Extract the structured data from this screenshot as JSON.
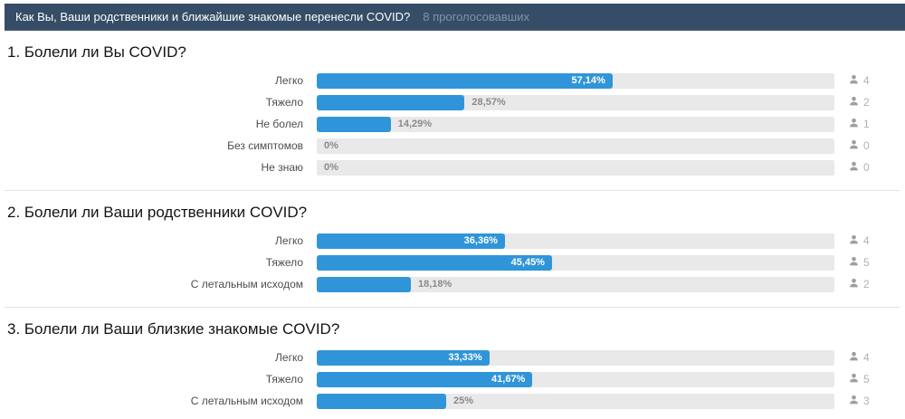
{
  "header": {
    "title": "Как Вы, Ваши родственники и ближайшие знакомые перенесли COVID?",
    "votes_label": "8 проголосовавших"
  },
  "colors": {
    "header_bg": "#354d66",
    "bar_fill": "#3095d8",
    "bar_track": "#e9e9e9",
    "muted_text": "#8a8a8a"
  },
  "sections": [
    {
      "title": "1. Болели ли Вы COVID?",
      "rows": [
        {
          "label": "Легко",
          "percent": "57,14%",
          "value": 57.14,
          "votes": 4
        },
        {
          "label": "Тяжело",
          "percent": "28,57%",
          "value": 28.57,
          "votes": 2
        },
        {
          "label": "Не болел",
          "percent": "14,29%",
          "value": 14.29,
          "votes": 1
        },
        {
          "label": "Без симптомов",
          "percent": "0%",
          "value": 0,
          "votes": 0
        },
        {
          "label": "Не знаю",
          "percent": "0%",
          "value": 0,
          "votes": 0
        }
      ]
    },
    {
      "title": "2. Болели ли Ваши родственники COVID?",
      "rows": [
        {
          "label": "Легко",
          "percent": "36,36%",
          "value": 36.36,
          "votes": 4
        },
        {
          "label": "Тяжело",
          "percent": "45,45%",
          "value": 45.45,
          "votes": 5
        },
        {
          "label": "С летальным исходом",
          "percent": "18,18%",
          "value": 18.18,
          "votes": 2
        }
      ]
    },
    {
      "title": "3. Болели ли Ваши близкие знакомые COVID?",
      "rows": [
        {
          "label": "Легко",
          "percent": "33,33%",
          "value": 33.33,
          "votes": 4
        },
        {
          "label": "Тяжело",
          "percent": "41,67%",
          "value": 41.67,
          "votes": 5
        },
        {
          "label": "С летальным исходом",
          "percent": "25%",
          "value": 25,
          "votes": 3
        }
      ]
    }
  ],
  "chart_data": [
    {
      "type": "bar",
      "orientation": "horizontal",
      "title": "1. Болели ли Вы COVID?",
      "categories": [
        "Легко",
        "Тяжело",
        "Не болел",
        "Без симптомов",
        "Не знаю"
      ],
      "values": [
        57.14,
        28.57,
        14.29,
        0,
        0
      ],
      "vote_counts": [
        4,
        2,
        1,
        0,
        0
      ],
      "xlabel": "",
      "ylabel": "",
      "xlim": [
        0,
        100
      ],
      "grid": false,
      "legend": false
    },
    {
      "type": "bar",
      "orientation": "horizontal",
      "title": "2. Болели ли Ваши родственники COVID?",
      "categories": [
        "Легко",
        "Тяжело",
        "С летальным исходом"
      ],
      "values": [
        36.36,
        45.45,
        18.18
      ],
      "vote_counts": [
        4,
        5,
        2
      ],
      "xlabel": "",
      "ylabel": "",
      "xlim": [
        0,
        100
      ],
      "grid": false,
      "legend": false
    },
    {
      "type": "bar",
      "orientation": "horizontal",
      "title": "3. Болели ли Ваши близкие знакомые COVID?",
      "categories": [
        "Легко",
        "Тяжело",
        "С летальным исходом"
      ],
      "values": [
        33.33,
        41.67,
        25
      ],
      "vote_counts": [
        4,
        5,
        3
      ],
      "xlabel": "",
      "ylabel": "",
      "xlim": [
        0,
        100
      ],
      "grid": false,
      "legend": false
    }
  ]
}
